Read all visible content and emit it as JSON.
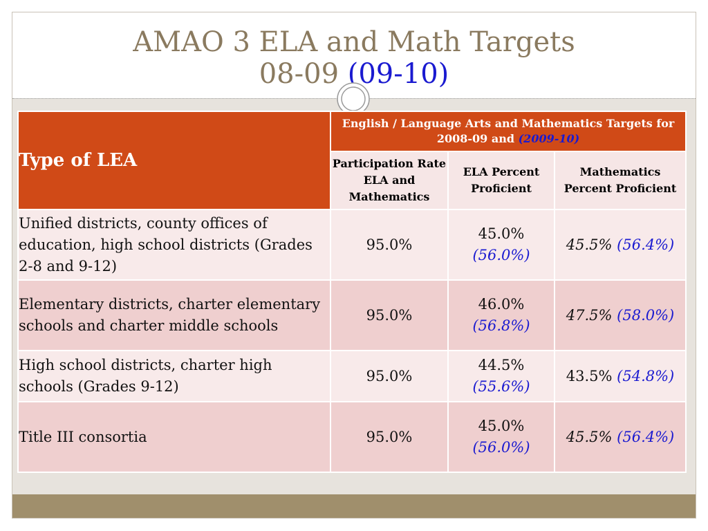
{
  "slide": {
    "title_line1": "AMAO 3 ELA and Math Targets",
    "title_line2_main": "08-09",
    "title_line2_paren": "(09-10)"
  },
  "table": {
    "type_header": "Type of LEA",
    "group_header_main": "English / Language Arts and Mathematics Targets for 2008-09 and",
    "group_header_paren": "(2009-10)",
    "columns": [
      "Participation Rate ELA and Mathematics",
      "ELA Percent Proficient",
      "Mathematics Percent Proficient"
    ],
    "rows": [
      {
        "lea": "Unified districts, county offices of education, high school districts (Grades 2-8 and 9-12)",
        "rate": "95.0%",
        "ela": "45.0%",
        "ela_next": "(56.0%)",
        "math": "45.5%",
        "math_next": "(56.4%)"
      },
      {
        "lea": "Elementary districts, charter elementary schools and charter middle schools",
        "rate": "95.0%",
        "ela": "46.0%",
        "ela_next": "(56.8%)",
        "math": "47.5%",
        "math_next": "(58.0%)"
      },
      {
        "lea": "High school districts, charter high schools (Grades 9-12)",
        "rate": "95.0%",
        "ela": "44.5%",
        "ela_next": "(55.6%)",
        "math": "43.5%",
        "math_next": "(54.8%)"
      },
      {
        "lea": "Title III consortia",
        "rate": "95.0%",
        "ela": "45.0%",
        "ela_next": "(56.0%)",
        "math": "45.5%",
        "math_next": "(56.4%)"
      }
    ]
  },
  "colors": {
    "header_orange": "#d04a17",
    "title_tan": "#8a7a5f",
    "paren_blue": "#1a1ad0",
    "bar_tan": "#a08f6c"
  },
  "icons": {
    "ornament": "double-ring-ornament-icon"
  }
}
